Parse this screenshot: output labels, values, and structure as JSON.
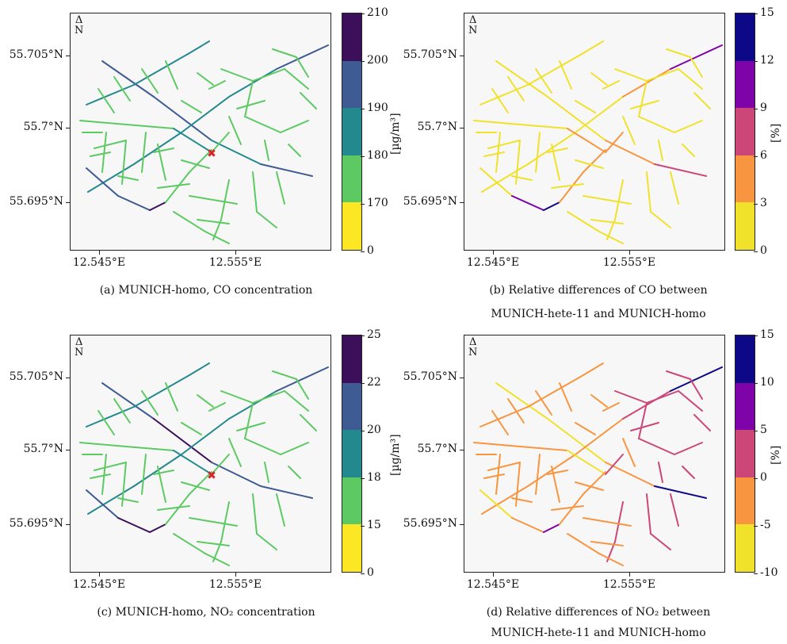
{
  "figure": {
    "panels": [
      {
        "id": "a",
        "caption_line1": "(a) MUNICH-homo, CO concentration",
        "caption_line2": "",
        "colorbar": {
          "label": "[µg/m³]",
          "ticks": [
            "210",
            "200",
            "190",
            "180",
            "170",
            "0"
          ],
          "colors": [
            "#3b0f5a",
            "#3f5b93",
            "#23898e",
            "#5dc963",
            "#fde725"
          ]
        },
        "y_ticks": [
          "55.705°N",
          "55.7°N",
          "55.695°N"
        ],
        "x_ticks": [
          "12.545°E",
          "12.555°E"
        ],
        "north_label": "N",
        "palette": "viridis"
      },
      {
        "id": "b",
        "caption_line1": "(b) Relative differences of CO between",
        "caption_line2": "MUNICH-hete-11 and MUNICH-homo",
        "colorbar": {
          "label": "[%]",
          "ticks": [
            "15",
            "12",
            "9",
            "6",
            "3",
            "0"
          ],
          "colors": [
            "#0d0887",
            "#7e03a8",
            "#cc4778",
            "#f89540",
            "#f0e12b"
          ]
        },
        "y_ticks": [
          "55.705°N",
          "55.7°N",
          "55.695°N"
        ],
        "x_ticks": [
          "12.545°E",
          "12.555°E"
        ],
        "north_label": "N",
        "palette": "plasma"
      },
      {
        "id": "c",
        "caption_line1": "(c) MUNICH-homo, NO₂ concentration",
        "caption_line2": "",
        "colorbar": {
          "label": "[µg/m³]",
          "ticks": [
            "25",
            "22",
            "20",
            "18",
            "15",
            "0"
          ],
          "colors": [
            "#3b0f5a",
            "#3f5b93",
            "#23898e",
            "#5dc963",
            "#fde725"
          ]
        },
        "y_ticks": [
          "55.705°N",
          "55.7°N",
          "55.695°N"
        ],
        "x_ticks": [
          "12.545°E",
          "12.555°E"
        ],
        "north_label": "N",
        "palette": "viridis"
      },
      {
        "id": "d",
        "caption_line1": "(d) Relative differences of NO₂ between",
        "caption_line2": "MUNICH-hete-11 and MUNICH-homo",
        "colorbar": {
          "label": "[%]",
          "ticks": [
            "15",
            "10",
            "5",
            "0",
            "-5",
            "-10"
          ],
          "colors": [
            "#0d0887",
            "#7e03a8",
            "#cc4778",
            "#f89540",
            "#f0e12b"
          ]
        },
        "y_ticks": [
          "55.705°N",
          "55.7°N",
          "55.695°N"
        ],
        "x_ticks": [
          "12.545°E",
          "12.555°E"
        ],
        "north_label": "N",
        "palette": "plasma"
      }
    ]
  }
}
